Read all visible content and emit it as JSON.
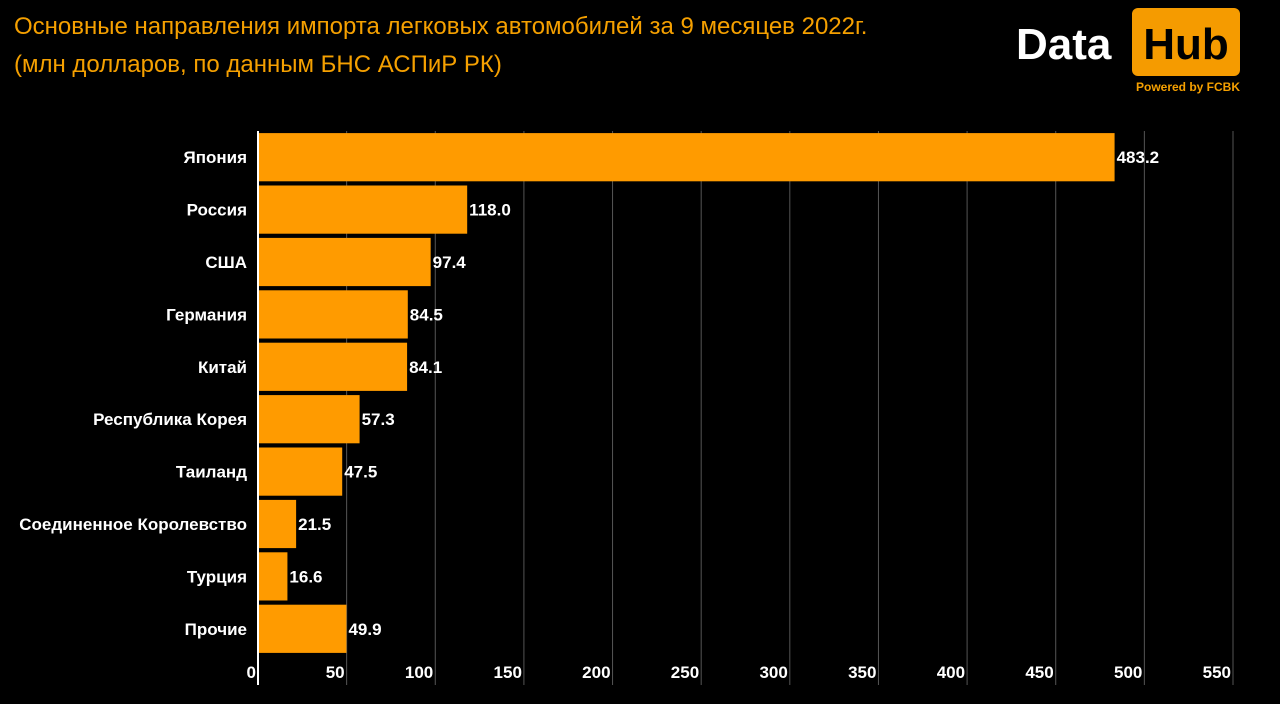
{
  "header": {
    "title_line1": "Основные направления импорта легковых автомобилей за 9 месяцев 2022г.",
    "title_line2": "(млн долларов, по данным БНС АСПиР РК)"
  },
  "logo": {
    "data": "Data",
    "hub": "Hub",
    "powered": "Powered by FCBK"
  },
  "colors": {
    "bar": "#ff9b00",
    "accent": "#f5a000",
    "background": "#000000",
    "grid": "#555555"
  },
  "chart_data": {
    "type": "bar",
    "orientation": "horizontal",
    "title": "Основные направления импорта легковых автомобилей за 9 месяцев 2022г. (млн долларов, по данным БНС АСПиР РК)",
    "categories": [
      "Япония",
      "Россия",
      "США",
      "Германия",
      "Китай",
      "Республика Корея",
      "Таиланд",
      "Соединенное Королевство",
      "Турция",
      "Прочие"
    ],
    "values": [
      483.2,
      118.0,
      97.4,
      84.5,
      84.1,
      57.3,
      47.5,
      21.5,
      16.6,
      49.9
    ],
    "value_labels": [
      "483.2",
      "118.0",
      "97.4",
      "84.5",
      "84.1",
      "57.3",
      "47.5",
      "21.5",
      "16.6",
      "49.9"
    ],
    "xlim": [
      0,
      550
    ],
    "xticks": [
      0,
      50,
      100,
      150,
      200,
      250,
      300,
      350,
      400,
      450,
      500,
      550
    ],
    "xlabel": "",
    "ylabel": "",
    "grid": true,
    "legend": "none"
  }
}
